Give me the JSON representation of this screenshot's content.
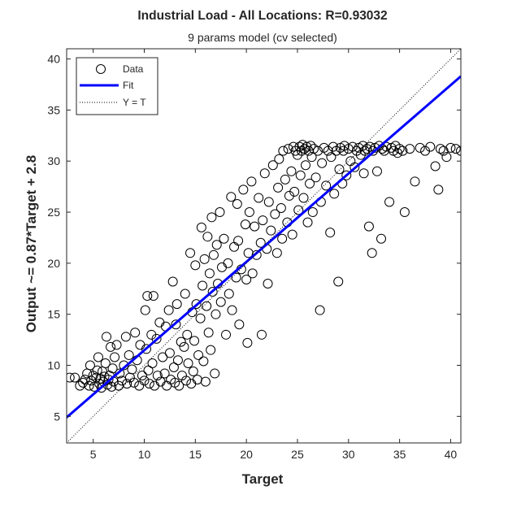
{
  "chart_data": {
    "type": "scatter",
    "title": "Industrial Load - All Locations: R=0.93032",
    "subtitle": "9 params model (cv selected)",
    "xlabel": "Target",
    "ylabel": "Output ~= 0.87*Target + 2.8",
    "xlim": [
      2.4,
      41
    ],
    "ylim": [
      2.4,
      41
    ],
    "xticks": [
      5,
      10,
      15,
      20,
      25,
      30,
      35,
      40
    ],
    "yticks": [
      5,
      10,
      15,
      20,
      25,
      30,
      35,
      40
    ],
    "xtick_labels": [
      "5",
      "10",
      "15",
      "20",
      "25",
      "30",
      "35",
      "40"
    ],
    "ytick_labels": [
      "5",
      "10",
      "15",
      "20",
      "25",
      "30",
      "35",
      "40"
    ],
    "grid": false,
    "legend": {
      "position": "top-left",
      "entries": [
        {
          "label": "Data",
          "marker": "circle",
          "color": "#000000"
        },
        {
          "label": "Fit",
          "line": "solid",
          "color": "#0000ff"
        },
        {
          "label": "Y = T",
          "line": "dotted",
          "color": "#000000"
        }
      ]
    },
    "series": [
      {
        "name": "Fit",
        "type": "line",
        "color": "#0000ff",
        "slope": 0.87,
        "intercept": 2.8,
        "x": [
          2.4,
          41
        ],
        "y": [
          4.9,
          38.3
        ]
      },
      {
        "name": "Y = T",
        "type": "line",
        "color": "#000000",
        "dash": "dotted",
        "x": [
          2.4,
          41
        ],
        "y": [
          2.4,
          41
        ]
      },
      {
        "name": "Data",
        "type": "scatter",
        "color": "#000000",
        "points": [
          [
            2.7,
            8.8
          ],
          [
            3.2,
            8.8
          ],
          [
            3.7,
            8.0
          ],
          [
            4.0,
            8.3
          ],
          [
            4.2,
            8.6
          ],
          [
            4.4,
            9.2
          ],
          [
            4.6,
            8.0
          ],
          [
            4.7,
            10.0
          ],
          [
            4.8,
            8.5
          ],
          [
            5.0,
            9.0
          ],
          [
            5.1,
            7.9
          ],
          [
            5.3,
            8.8
          ],
          [
            5.4,
            9.5
          ],
          [
            5.5,
            10.8
          ],
          [
            5.6,
            8.2
          ],
          [
            5.7,
            8.7
          ],
          [
            5.8,
            7.8
          ],
          [
            5.9,
            9.4
          ],
          [
            6.0,
            8.4
          ],
          [
            6.1,
            8.9
          ],
          [
            6.2,
            10.2
          ],
          [
            6.3,
            12.8
          ],
          [
            6.4,
            8.1
          ],
          [
            6.5,
            8.6
          ],
          [
            6.6,
            9.0
          ],
          [
            6.7,
            11.8
          ],
          [
            6.8,
            7.9
          ],
          [
            6.9,
            9.7
          ],
          [
            7.0,
            8.4
          ],
          [
            7.1,
            10.8
          ],
          [
            7.3,
            12.0
          ],
          [
            7.5,
            8.0
          ],
          [
            7.6,
            9.2
          ],
          [
            7.8,
            8.5
          ],
          [
            8.0,
            10.0
          ],
          [
            8.2,
            12.8
          ],
          [
            8.3,
            8.2
          ],
          [
            8.5,
            11.0
          ],
          [
            8.6,
            8.8
          ],
          [
            8.8,
            9.6
          ],
          [
            9.0,
            8.3
          ],
          [
            9.1,
            13.2
          ],
          [
            9.3,
            10.5
          ],
          [
            9.5,
            8.0
          ],
          [
            9.6,
            12.0
          ],
          [
            9.8,
            9.0
          ],
          [
            10.0,
            8.5
          ],
          [
            10.1,
            15.4
          ],
          [
            10.2,
            11.6
          ],
          [
            10.3,
            16.8
          ],
          [
            10.4,
            9.5
          ],
          [
            10.5,
            8.2
          ],
          [
            10.7,
            13.0
          ],
          [
            10.8,
            10.2
          ],
          [
            10.9,
            16.8
          ],
          [
            11.0,
            8.0
          ],
          [
            11.2,
            12.6
          ],
          [
            11.3,
            9.0
          ],
          [
            11.5,
            14.2
          ],
          [
            11.6,
            8.4
          ],
          [
            11.8,
            10.8
          ],
          [
            12.0,
            9.2
          ],
          [
            12.1,
            13.8
          ],
          [
            12.2,
            8.0
          ],
          [
            12.4,
            15.4
          ],
          [
            12.5,
            11.2
          ],
          [
            12.6,
            8.6
          ],
          [
            12.8,
            18.2
          ],
          [
            12.9,
            9.8
          ],
          [
            13.0,
            8.3
          ],
          [
            13.1,
            14.0
          ],
          [
            13.2,
            16.0
          ],
          [
            13.3,
            10.5
          ],
          [
            13.4,
            8.0
          ],
          [
            13.6,
            12.3
          ],
          [
            13.7,
            9.0
          ],
          [
            13.9,
            11.8
          ],
          [
            14.0,
            17.0
          ],
          [
            14.1,
            8.5
          ],
          [
            14.2,
            13.0
          ],
          [
            14.3,
            10.2
          ],
          [
            14.5,
            21.0
          ],
          [
            14.6,
            8.2
          ],
          [
            14.7,
            15.2
          ],
          [
            14.8,
            9.4
          ],
          [
            14.9,
            12.4
          ],
          [
            15.0,
            19.8
          ],
          [
            15.1,
            16.0
          ],
          [
            15.2,
            8.6
          ],
          [
            15.3,
            11.0
          ],
          [
            15.5,
            14.6
          ],
          [
            15.6,
            23.5
          ],
          [
            15.7,
            17.8
          ],
          [
            15.8,
            10.4
          ],
          [
            15.9,
            20.4
          ],
          [
            16.0,
            8.4
          ],
          [
            16.1,
            15.8
          ],
          [
            16.2,
            22.6
          ],
          [
            16.3,
            13.2
          ],
          [
            16.4,
            19.0
          ],
          [
            16.5,
            11.5
          ],
          [
            16.6,
            24.5
          ],
          [
            16.7,
            17.2
          ],
          [
            16.8,
            20.8
          ],
          [
            16.9,
            9.2
          ],
          [
            17.0,
            15.0
          ],
          [
            17.1,
            21.8
          ],
          [
            17.2,
            18.0
          ],
          [
            17.4,
            25.0
          ],
          [
            17.5,
            16.2
          ],
          [
            17.6,
            19.6
          ],
          [
            17.8,
            22.4
          ],
          [
            18.0,
            13.0
          ],
          [
            18.2,
            20.0
          ],
          [
            18.3,
            17.0
          ],
          [
            18.5,
            26.5
          ],
          [
            18.6,
            15.4
          ],
          [
            18.8,
            21.6
          ],
          [
            19.0,
            18.6
          ],
          [
            19.1,
            25.8
          ],
          [
            19.2,
            22.2
          ],
          [
            19.3,
            14.0
          ],
          [
            19.5,
            19.4
          ],
          [
            19.7,
            27.2
          ],
          [
            19.9,
            23.8
          ],
          [
            20.0,
            18.4
          ],
          [
            20.1,
            12.2
          ],
          [
            20.2,
            21.0
          ],
          [
            20.3,
            25.0
          ],
          [
            20.5,
            28.0
          ],
          [
            20.6,
            19.0
          ],
          [
            20.8,
            23.6
          ],
          [
            21.0,
            20.8
          ],
          [
            21.2,
            26.4
          ],
          [
            21.4,
            22.0
          ],
          [
            21.5,
            13.0
          ],
          [
            21.6,
            24.2
          ],
          [
            21.8,
            28.8
          ],
          [
            22.0,
            21.4
          ],
          [
            22.1,
            18.0
          ],
          [
            22.2,
            26.0
          ],
          [
            22.4,
            23.2
          ],
          [
            22.6,
            29.6
          ],
          [
            22.8,
            24.8
          ],
          [
            23.0,
            21.0
          ],
          [
            23.1,
            27.4
          ],
          [
            23.2,
            30.2
          ],
          [
            23.4,
            25.4
          ],
          [
            23.5,
            22.4
          ],
          [
            23.6,
            31.0
          ],
          [
            23.8,
            28.2
          ],
          [
            24.0,
            24.0
          ],
          [
            24.1,
            31.2
          ],
          [
            24.2,
            26.6
          ],
          [
            24.4,
            29.0
          ],
          [
            24.5,
            22.8
          ],
          [
            24.6,
            31.4
          ],
          [
            24.7,
            27.0
          ],
          [
            24.8,
            31.0
          ],
          [
            25.0,
            30.6
          ],
          [
            25.1,
            25.2
          ],
          [
            25.2,
            31.4
          ],
          [
            25.3,
            28.6
          ],
          [
            25.4,
            31.0
          ],
          [
            25.5,
            31.6
          ],
          [
            25.6,
            26.4
          ],
          [
            25.7,
            31.2
          ],
          [
            25.8,
            29.6
          ],
          [
            25.9,
            31.4
          ],
          [
            26.0,
            24.0
          ],
          [
            26.1,
            31.0
          ],
          [
            26.2,
            27.8
          ],
          [
            26.3,
            31.5
          ],
          [
            26.4,
            30.4
          ],
          [
            26.5,
            25.0
          ],
          [
            26.6,
            31.2
          ],
          [
            26.8,
            28.4
          ],
          [
            27.0,
            31.0
          ],
          [
            27.2,
            15.4
          ],
          [
            27.3,
            26.0
          ],
          [
            27.4,
            29.8
          ],
          [
            27.6,
            31.3
          ],
          [
            27.8,
            27.6
          ],
          [
            28.0,
            31.0
          ],
          [
            28.2,
            23.0
          ],
          [
            28.3,
            30.4
          ],
          [
            28.5,
            31.4
          ],
          [
            28.6,
            26.8
          ],
          [
            28.8,
            31.0
          ],
          [
            29.0,
            18.2
          ],
          [
            29.1,
            29.2
          ],
          [
            29.2,
            31.3
          ],
          [
            29.4,
            27.8
          ],
          [
            29.5,
            31.0
          ],
          [
            29.6,
            31.5
          ],
          [
            29.8,
            28.6
          ],
          [
            30.0,
            31.2
          ],
          [
            30.2,
            30.0
          ],
          [
            30.4,
            31.4
          ],
          [
            30.6,
            29.4
          ],
          [
            30.8,
            31.0
          ],
          [
            31.0,
            31.3
          ],
          [
            31.2,
            30.6
          ],
          [
            31.4,
            31.5
          ],
          [
            31.5,
            28.8
          ],
          [
            31.6,
            31.0
          ],
          [
            31.8,
            31.2
          ],
          [
            32.0,
            23.6
          ],
          [
            32.1,
            31.4
          ],
          [
            32.3,
            21.0
          ],
          [
            32.4,
            31.0
          ],
          [
            32.6,
            31.3
          ],
          [
            32.8,
            29.0
          ],
          [
            33.0,
            31.5
          ],
          [
            33.2,
            22.4
          ],
          [
            33.3,
            31.2
          ],
          [
            33.5,
            31.0
          ],
          [
            33.7,
            31.4
          ],
          [
            34.0,
            26.0
          ],
          [
            34.2,
            31.3
          ],
          [
            34.4,
            31.0
          ],
          [
            34.6,
            31.5
          ],
          [
            34.8,
            30.8
          ],
          [
            35.0,
            31.2
          ],
          [
            35.3,
            31.0
          ],
          [
            35.5,
            25.0
          ],
          [
            36.0,
            31.2
          ],
          [
            36.5,
            28.0
          ],
          [
            37.0,
            31.3
          ],
          [
            37.5,
            31.0
          ],
          [
            38.0,
            31.4
          ],
          [
            38.5,
            29.5
          ],
          [
            38.8,
            27.2
          ],
          [
            39.0,
            31.2
          ],
          [
            39.3,
            31.0
          ],
          [
            39.6,
            30.4
          ],
          [
            40.0,
            31.3
          ],
          [
            40.5,
            31.2
          ],
          [
            41.0,
            31.0
          ]
        ]
      }
    ]
  }
}
